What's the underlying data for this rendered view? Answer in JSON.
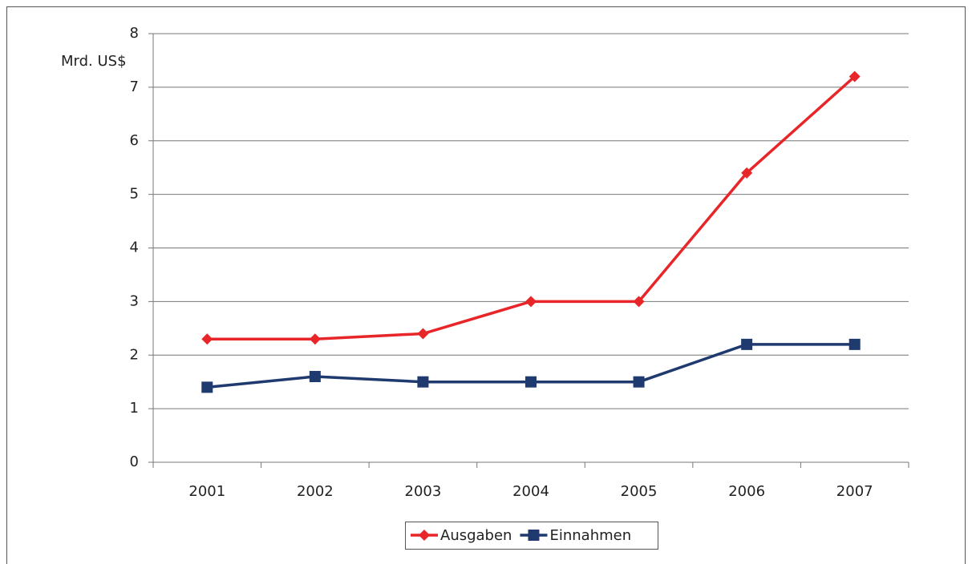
{
  "chart_data": {
    "type": "line",
    "y_label": "Mrd. US$",
    "categories": [
      "2001",
      "2002",
      "2003",
      "2004",
      "2005",
      "2006",
      "2007"
    ],
    "series": [
      {
        "name": "Ausgaben",
        "color": "#e8262a",
        "marker": "diamond",
        "values": [
          2.3,
          2.3,
          2.4,
          3,
          3,
          5.4,
          7.2
        ]
      },
      {
        "name": "Einnahmen",
        "color": "#1f3a6e",
        "marker": "square",
        "values": [
          1.4,
          1.6,
          1.5,
          1.5,
          1.5,
          2.2,
          2.2
        ]
      }
    ],
    "ylim": [
      0,
      8
    ],
    "yticks": [
      0,
      1,
      2,
      3,
      4,
      5,
      6,
      7,
      8
    ],
    "grid": true,
    "legend": "bottom"
  }
}
